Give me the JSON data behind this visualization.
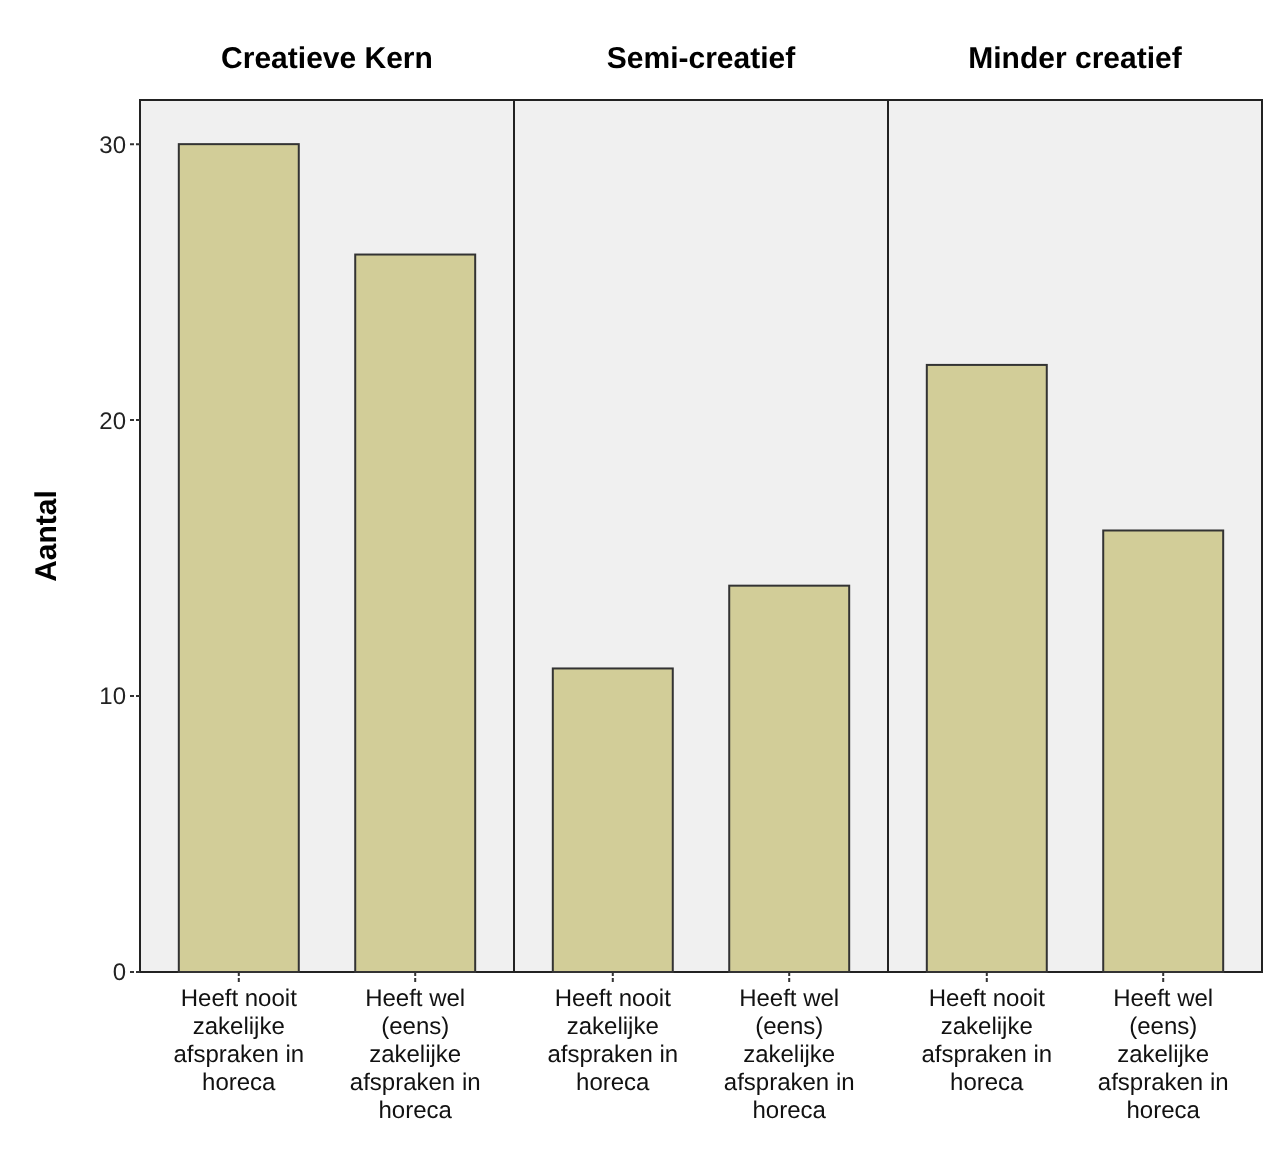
{
  "chart_data": [
    {
      "type": "bar",
      "title": "Creatieve Kern",
      "ylabel": "Aantal",
      "categories": [
        "Heeft nooit zakelijke afspraken in horeca",
        "Heeft wel (eens) zakelijke afspraken in horeca"
      ],
      "values": [
        30,
        26
      ],
      "color": "#d2cd98",
      "ylim": [
        0,
        31.6
      ],
      "yticks": [
        0,
        10,
        20,
        30
      ]
    },
    {
      "type": "bar",
      "title": "Semi-creatief",
      "categories": [
        "Heeft nooit zakelijke afspraken in horeca",
        "Heeft wel (eens) zakelijke afspraken in horeca"
      ],
      "values": [
        11,
        14
      ],
      "color": "#d2cd98",
      "ylim": [
        0,
        31.6
      ],
      "tick_labels": "x"
    },
    {
      "type": "bar",
      "title": "Minder creatief",
      "categories": [
        "Heeft nooit zakelijke afspraken in horeca",
        "Heeft wel (eens) zakelijke afspraken in horeca"
      ],
      "values": [
        22,
        16
      ],
      "color": "#d2cd98",
      "ylim": [
        0,
        31.6
      ],
      "tick_labels": "x"
    }
  ]
}
